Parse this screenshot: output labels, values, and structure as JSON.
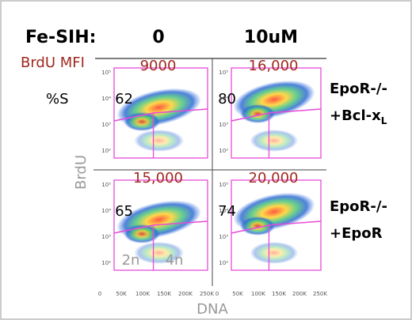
{
  "header": {
    "label": "Fe-SIH:",
    "columns": [
      "0",
      "10uM"
    ]
  },
  "mfi_label": "BrdU MFI",
  "percent_label": "%S",
  "rows": [
    {
      "label_line1": "EpoR-/-",
      "label_line2": "+Bcl-x",
      "label_sub": "L"
    },
    {
      "label_line1": "EpoR-/-",
      "label_line2": "+EpoR",
      "label_sub": ""
    }
  ],
  "panels": [
    [
      {
        "mfi": "9000",
        "percent_s": "62"
      },
      {
        "mfi": "16,000",
        "percent_s": "80"
      }
    ],
    [
      {
        "mfi": "15,000",
        "percent_s": "65"
      },
      {
        "mfi": "20,000",
        "percent_s": "74"
      }
    ]
  ],
  "y_axis": {
    "label": "BrdU",
    "ticks": [
      "10⁵",
      "10⁴",
      "10³",
      "10²"
    ]
  },
  "x_axis": {
    "label": "DNA",
    "ticks": [
      "0",
      "50K",
      "100K",
      "150K",
      "200K",
      "250K"
    ]
  },
  "gate_labels": [
    "2n",
    "4n"
  ]
}
